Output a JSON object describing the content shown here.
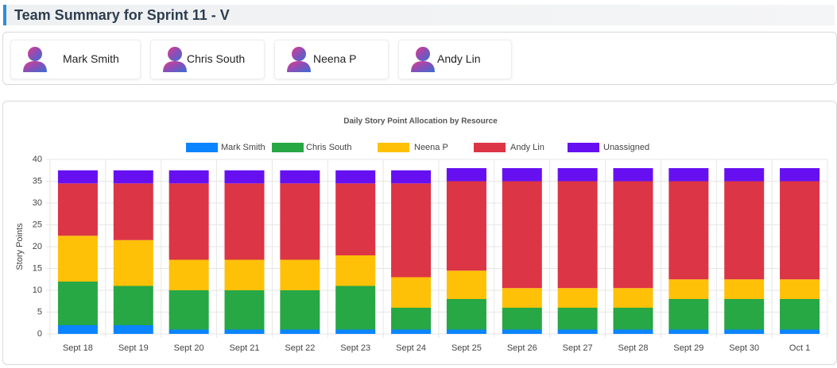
{
  "header": {
    "title": "Team Summary for Sprint 11 - V"
  },
  "members": [
    "Mark Smith",
    "Chris South",
    "Neena P",
    "Andy Lin"
  ],
  "chart_data": {
    "type": "stacked-bar",
    "title": "Daily Story Point Allocation by Resource",
    "y_label": "Story Points",
    "categories": [
      "Sept 18",
      "Sept 19",
      "Sept 20",
      "Sept 21",
      "Sept 22",
      "Sept 23",
      "Sept 24",
      "Sept 25",
      "Sept 26",
      "Sept 27",
      "Sept 28",
      "Sept 29",
      "Sept 30",
      "Oct 1"
    ],
    "series": [
      {
        "name": "Mark Smith",
        "color": "#0a84ff",
        "values": [
          2,
          2,
          1,
          1,
          1,
          1,
          1,
          1,
          1,
          1,
          1,
          1,
          1,
          1
        ]
      },
      {
        "name": "Chris South",
        "color": "#28a745",
        "values": [
          10,
          9,
          9,
          9,
          9,
          10,
          5,
          7,
          5,
          5,
          5,
          7,
          7,
          7
        ]
      },
      {
        "name": "Neena P",
        "color": "#ffc107",
        "values": [
          10.5,
          10.5,
          7,
          7,
          7,
          7,
          7,
          6.5,
          4.5,
          4.5,
          4.5,
          4.5,
          4.5,
          4.5
        ]
      },
      {
        "name": "Andy Lin",
        "color": "#dc3545",
        "values": [
          12,
          13,
          17.5,
          17.5,
          17.5,
          16.5,
          21.5,
          20.5,
          24.5,
          24.5,
          24.5,
          22.5,
          22.5,
          22.5
        ]
      },
      {
        "name": "Unassigned",
        "color": "#6610f2",
        "values": [
          3,
          3,
          3,
          3,
          3,
          3,
          3,
          3,
          3,
          3,
          3,
          3,
          3,
          3
        ]
      }
    ],
    "ylim": [
      0,
      40
    ],
    "yticks": [
      0,
      5,
      10,
      15,
      20,
      25,
      30,
      35,
      40
    ],
    "grid": true
  }
}
